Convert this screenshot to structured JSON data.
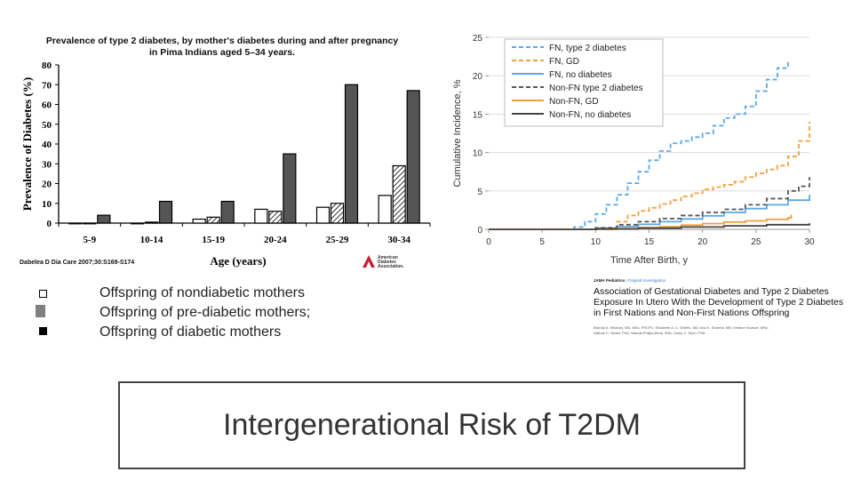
{
  "slide": {
    "title": "Intergenerational Risk of T2DM",
    "legend": [
      "Offspring of nondiabetic mothers",
      "Offspring of pre-diabetic mothers;",
      "Offspring of diabetic mothers"
    ]
  },
  "chart_data": [
    {
      "type": "bar",
      "title": "Prevalence of type 2 diabetes, by mother's diabetes during and after pregnancy",
      "subtitle": "in Pima Indians aged 5–34 years.",
      "xlabel": "Age (years)",
      "ylabel": "Prevalence of Diabetes (%)",
      "ylim": [
        0,
        80
      ],
      "yticks": [
        0,
        10,
        20,
        30,
        40,
        50,
        60,
        70,
        80
      ],
      "categories": [
        "5-9",
        "10-14",
        "15-19",
        "20-24",
        "25-29",
        "30-34"
      ],
      "series": [
        {
          "values": [
            0,
            0,
            2,
            7,
            8,
            14
          ],
          "color": "#ffffff",
          "pattern": "open"
        },
        {
          "values": [
            0,
            0.5,
            3,
            6,
            10,
            29
          ],
          "color": "#ffffff",
          "pattern": "hatched"
        },
        {
          "values": [
            4,
            11,
            11,
            35,
            70,
            67
          ],
          "color": "#555555",
          "pattern": "solid"
        }
      ],
      "citation": "Dabelea D Dia Care 2007;30:S169-S174",
      "logo_text": [
        "American",
        "Diabetes",
        "Association."
      ]
    },
    {
      "type": "line",
      "xlabel": "Time After Birth, y",
      "ylabel": "Cumulative Incidence, %",
      "xlim": [
        0,
        30
      ],
      "ylim": [
        0,
        25
      ],
      "xticks": [
        0,
        5,
        10,
        15,
        20,
        25,
        30
      ],
      "yticks": [
        0,
        5,
        10,
        15,
        20,
        25
      ],
      "grid": true,
      "legend_position": "top-left",
      "series": [
        {
          "name": "FN, type 2 diabetes",
          "color": "#5aa8e8",
          "dash": true,
          "points": [
            [
              0,
              0
            ],
            [
              7,
              0
            ],
            [
              8,
              0.3
            ],
            [
              9,
              1
            ],
            [
              10,
              2
            ],
            [
              11,
              3.2
            ],
            [
              12,
              4.5
            ],
            [
              13,
              6
            ],
            [
              14,
              7.5
            ],
            [
              15,
              9
            ],
            [
              16,
              10.2
            ],
            [
              17,
              11.2
            ],
            [
              18,
              11.5
            ],
            [
              19,
              12
            ],
            [
              20,
              12.5
            ],
            [
              21,
              13.5
            ],
            [
              22,
              14.5
            ],
            [
              23,
              15
            ],
            [
              24,
              16
            ],
            [
              25,
              18
            ],
            [
              26,
              19.5
            ],
            [
              27,
              21
            ],
            [
              28,
              22
            ]
          ]
        },
        {
          "name": "FN, GD",
          "color": "#f0a040",
          "dash": true,
          "points": [
            [
              0,
              0
            ],
            [
              11,
              0
            ],
            [
              12,
              1
            ],
            [
              13,
              1.8
            ],
            [
              14,
              2.4
            ],
            [
              15,
              2.8
            ],
            [
              16,
              3.3
            ],
            [
              17,
              3.8
            ],
            [
              18,
              4.3
            ],
            [
              19,
              4.7
            ],
            [
              20,
              5.2
            ],
            [
              21,
              5.5
            ],
            [
              22,
              5.8
            ],
            [
              23,
              6.2
            ],
            [
              24,
              6.8
            ],
            [
              25,
              7.3
            ],
            [
              26,
              7.8
            ],
            [
              27,
              8.3
            ],
            [
              28,
              9.5
            ],
            [
              29,
              11.5
            ],
            [
              30,
              14
            ]
          ]
        },
        {
          "name": "FN, no diabetes",
          "color": "#5aa8e8",
          "dash": false,
          "points": [
            [
              0,
              0
            ],
            [
              10,
              0.15
            ],
            [
              12,
              0.35
            ],
            [
              14,
              0.65
            ],
            [
              16,
              1
            ],
            [
              18,
              1.35
            ],
            [
              20,
              1.75
            ],
            [
              22,
              2.2
            ],
            [
              24,
              2.7
            ],
            [
              26,
              3.2
            ],
            [
              28,
              3.8
            ],
            [
              30,
              4.5
            ]
          ]
        },
        {
          "name": "Non-FN type 2 diabetes",
          "color": "#555555",
          "dash": true,
          "points": [
            [
              0,
              0
            ],
            [
              10,
              0.2
            ],
            [
              12,
              0.6
            ],
            [
              14,
              1
            ],
            [
              16,
              1.4
            ],
            [
              18,
              1.8
            ],
            [
              20,
              2.2
            ],
            [
              22,
              2.6
            ],
            [
              24,
              3.2
            ],
            [
              26,
              4
            ],
            [
              28,
              5
            ],
            [
              29,
              5.6
            ],
            [
              30,
              6.8
            ]
          ]
        },
        {
          "name": "Non-FN, GD",
          "color": "#f0a040",
          "dash": false,
          "points": [
            [
              0,
              0
            ],
            [
              12,
              0.1
            ],
            [
              14,
              0.25
            ],
            [
              16,
              0.35
            ],
            [
              18,
              0.55
            ],
            [
              20,
              0.75
            ],
            [
              22,
              0.95
            ],
            [
              24,
              1.1
            ],
            [
              26,
              1.3
            ],
            [
              28,
              1.5
            ],
            [
              28.3,
              1.9
            ]
          ]
        },
        {
          "name": "Non-FN, no diabetes",
          "color": "#444444",
          "dash": false,
          "points": [
            [
              0,
              0
            ],
            [
              10,
              0.05
            ],
            [
              14,
              0.15
            ],
            [
              18,
              0.3
            ],
            [
              22,
              0.45
            ],
            [
              26,
              0.6
            ],
            [
              30,
              0.8
            ]
          ]
        }
      ]
    }
  ],
  "publication": {
    "journal": "JAMA Pediatrics",
    "section": "Original Investigation",
    "title_lines": [
      "Association of Gestational Diabetes and Type 2 Diabetes",
      "Exposure In Utero With the Development of Type 2 Diabetes",
      "in First Nations and Non-First Nations Offspring"
    ],
    "authors": [
      "Brandy A. Wicklow, MD, MSc, FRCPC; Elizabeth A. C. Sellers, MD; Atul K. Sharma, MD; Kristine Kroeker, MSc;",
      "Nathan C. Nickel, PhD; Wanda Philips-Beck, MSc; Garry X. Shen, PhD"
    ]
  }
}
